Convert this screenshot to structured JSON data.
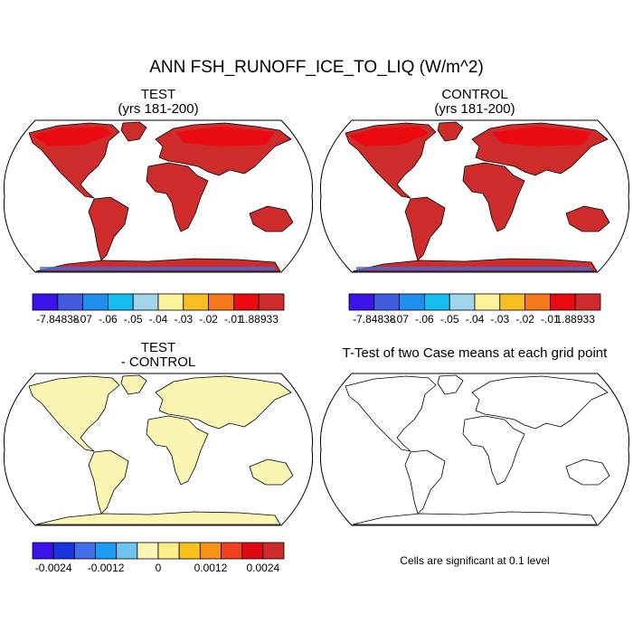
{
  "title": "ANN FSH_RUNOFF_ICE_TO_LIQ (W/m^2)",
  "panels": [
    {
      "id": "test",
      "title_line1": "TEST",
      "title_line2": "(yrs 181-200)"
    },
    {
      "id": "control",
      "title_line1": "CONTROL",
      "title_line2": "(yrs 181-200)"
    },
    {
      "id": "diff",
      "title_line1": "TEST",
      "title_line2": "- CONTROL"
    },
    {
      "id": "ttest",
      "title_line1": "T-Test of two Case means at each grid point"
    }
  ],
  "colorbar_top": {
    "colors": [
      "#3b12e8",
      "#3f5ce0",
      "#1e8ef0",
      "#16bdee",
      "#9fd4ec",
      "#fcf29c",
      "#f8be22",
      "#f6781a",
      "#eb0a10",
      "#cd2c2a"
    ],
    "labels": [
      "-7.84838",
      "-.07",
      "-.06",
      "-.05",
      "-.04",
      "-.03",
      "-.02",
      "-.01",
      "1.88933"
    ]
  },
  "colorbar_diff": {
    "colors": [
      "#3b12e8",
      "#1a34e0",
      "#3f6ee6",
      "#1e9cf0",
      "#6fc3ee",
      "#fcf6b4",
      "#fcee8a",
      "#f9c21a",
      "#f7911a",
      "#f2401a",
      "#e00a12",
      "#cd2c2a"
    ],
    "labels": [
      "-0.0024",
      "-0.0012",
      "0",
      "0.0012",
      "0.0024"
    ]
  },
  "significance_note": "Cells are significant at 0.1 level",
  "fill_colors": {
    "land_main": "#cd2c2a",
    "land_bright": "#eb0a10",
    "diff_land": "#fcf6b4"
  }
}
